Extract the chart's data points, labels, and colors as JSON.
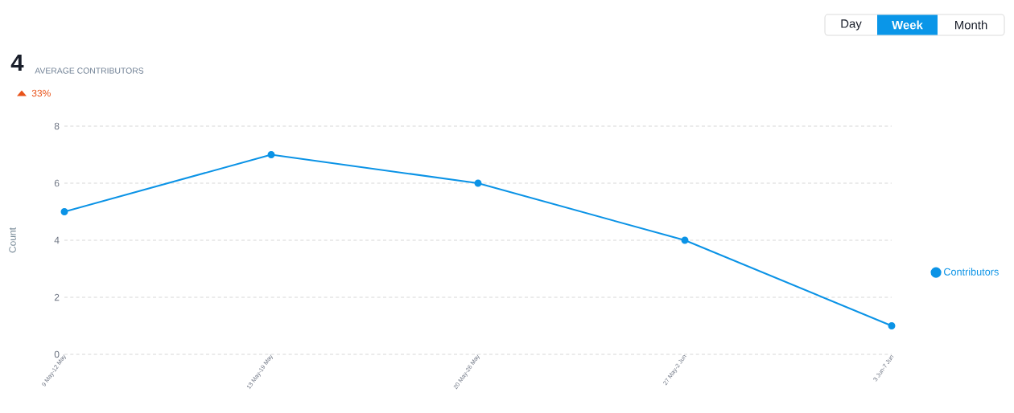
{
  "chart_data": {
    "type": "line",
    "ylabel": "Count",
    "categories": [
      "9 May-12 May",
      "13 May-19 May",
      "20 May-26 May",
      "27 May-2 Jun",
      "3 Jun-7 Jun"
    ],
    "series": [
      {
        "name": "Contributors",
        "color": "#0b93e6",
        "values": [
          5,
          7,
          6,
          4,
          1
        ]
      }
    ],
    "ylim": [
      0,
      8
    ],
    "yticks": [
      0,
      2,
      4,
      6,
      8
    ],
    "grid": "y",
    "legend": "right",
    "marker": "circle",
    "line_style": "solid",
    "annotations": [
      "4",
      "AVERAGE CONTRIBUTORS",
      "33%",
      "Day",
      "Week",
      "Month"
    ]
  }
}
